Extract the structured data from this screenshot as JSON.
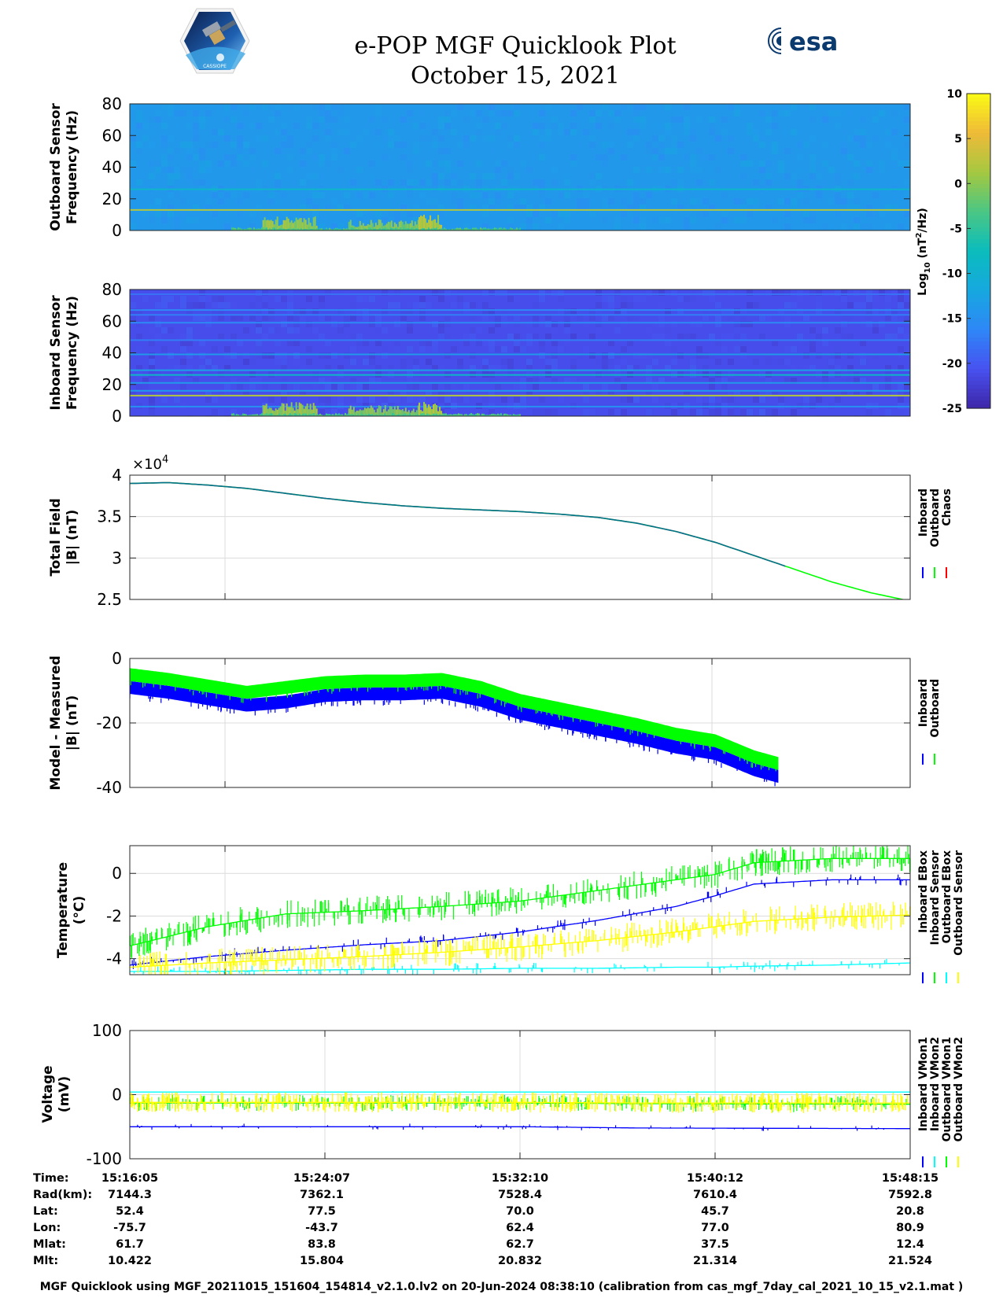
{
  "header": {
    "title": "e-POP MGF Quicklook Plot",
    "date": "October 15, 2021",
    "left_logo_text": "CASSIOPE",
    "right_logo_text": "esa"
  },
  "chart_data": [
    {
      "id": "outboard-spectrogram",
      "type": "heatmap",
      "ylabel": [
        "Outboard Sensor",
        "Frequency (Hz)"
      ],
      "ylim": [
        0,
        80
      ],
      "yticks": [
        0,
        20,
        40,
        60,
        80
      ],
      "background_log_psd": -14,
      "horizontal_lines_hz": [
        {
          "f": 26,
          "level": -9
        },
        {
          "f": 13,
          "level": 2
        }
      ],
      "activity_bursts": [
        {
          "t_start": 0.17,
          "t_end": 0.24,
          "max_hz": 9,
          "level": 2
        },
        {
          "t_start": 0.28,
          "t_end": 0.37,
          "max_hz": 7,
          "level": 1
        },
        {
          "t_start": 0.37,
          "t_end": 0.4,
          "max_hz": 10,
          "level": 3
        },
        {
          "t_start": 0.13,
          "t_end": 0.5,
          "max_hz": 2,
          "level": -2
        }
      ]
    },
    {
      "id": "inboard-spectrogram",
      "type": "heatmap",
      "ylabel": [
        "Inboard Sensor",
        "Frequency (Hz)"
      ],
      "ylim": [
        0,
        80
      ],
      "yticks": [
        0,
        20,
        40,
        60,
        80
      ],
      "background_log_psd": -21,
      "horizontal_lines_hz": [
        {
          "f": 77,
          "level": -18
        },
        {
          "f": 67,
          "level": -16
        },
        {
          "f": 64,
          "level": -17
        },
        {
          "f": 59,
          "level": -16
        },
        {
          "f": 48,
          "level": -17
        },
        {
          "f": 39,
          "level": -14
        },
        {
          "f": 29,
          "level": -13
        },
        {
          "f": 26,
          "level": -9
        },
        {
          "f": 21,
          "level": -14
        },
        {
          "f": 16,
          "level": -14
        },
        {
          "f": 13,
          "level": 2
        },
        {
          "f": 6,
          "level": -15
        }
      ],
      "activity_bursts": [
        {
          "t_start": 0.17,
          "t_end": 0.24,
          "max_hz": 9,
          "level": 2
        },
        {
          "t_start": 0.28,
          "t_end": 0.37,
          "max_hz": 7,
          "level": 1
        },
        {
          "t_start": 0.37,
          "t_end": 0.4,
          "max_hz": 10,
          "level": 3
        },
        {
          "t_start": 0.13,
          "t_end": 0.5,
          "max_hz": 2,
          "level": -2
        }
      ]
    },
    {
      "id": "colorbar",
      "type": "heatmap",
      "label": "Log10 (nT2/Hz)",
      "label_parts": {
        "base": "Log",
        "sub": "10",
        "open": " (nT",
        "sup": "2",
        "close": "/Hz)"
      },
      "range": [
        -25,
        10
      ],
      "ticks": [
        10,
        5,
        0,
        -5,
        -10,
        -15,
        -20,
        -25
      ],
      "colormap": [
        "#3e26a8",
        "#4751f0",
        "#2e87f7",
        "#17a8e0",
        "#0bbcbc",
        "#4bc784",
        "#a5c840",
        "#efba38",
        "#f9fb15"
      ]
    },
    {
      "id": "total-field",
      "type": "line",
      "ylabel": [
        "Total Field",
        "|B| (nT)"
      ],
      "ylim": [
        25000,
        40000
      ],
      "yticks": [
        25000,
        30000,
        35000,
        40000
      ],
      "ytick_labels": [
        "2.5",
        "3",
        "3.5",
        "4"
      ],
      "exponent_label": "×10",
      "exponent_power": "4",
      "x": [
        0,
        0.05,
        0.1,
        0.15,
        0.2,
        0.25,
        0.3,
        0.35,
        0.4,
        0.45,
        0.5,
        0.55,
        0.6,
        0.65,
        0.7,
        0.75,
        0.8,
        0.85,
        0.9,
        0.95,
        1.0
      ],
      "series": [
        {
          "name": "Inboard",
          "color": "#0000ff",
          "visible_until": 0.84,
          "values": [
            39000,
            39100,
            38800,
            38400,
            37800,
            37200,
            36700,
            36300,
            36000,
            35800,
            35600,
            35300,
            34900,
            34200,
            33200,
            31900,
            30300,
            28700,
            27100,
            25800,
            24800
          ]
        },
        {
          "name": "Outboard",
          "color": "#00ff00",
          "visible_until": 1.0,
          "values": [
            39000,
            39100,
            38800,
            38400,
            37800,
            37200,
            36700,
            36300,
            36000,
            35800,
            35600,
            35300,
            34900,
            34200,
            33200,
            31900,
            30300,
            28700,
            27100,
            25800,
            24800
          ]
        },
        {
          "name": "Chaos",
          "color": "#ff0000",
          "visible_until": 0.84,
          "values": [
            39000,
            39100,
            38800,
            38400,
            37800,
            37200,
            36700,
            36300,
            36000,
            35800,
            35600,
            35300,
            34900,
            34200,
            33200,
            31900,
            30300,
            28700,
            27100,
            25800,
            24800
          ]
        }
      ]
    },
    {
      "id": "model-minus-measured",
      "type": "line",
      "ylabel": [
        "Model - Measured",
        "|B| (nT)"
      ],
      "ylim": [
        -40,
        0
      ],
      "yticks": [
        -40,
        -20,
        0
      ],
      "ytick_labels": [
        "-40",
        "-20",
        "0"
      ],
      "x": [
        0,
        0.05,
        0.1,
        0.15,
        0.2,
        0.25,
        0.3,
        0.35,
        0.4,
        0.45,
        0.5,
        0.55,
        0.6,
        0.65,
        0.7,
        0.75,
        0.8,
        0.83
      ],
      "series": [
        {
          "name": "Inboard",
          "color": "#0000ff",
          "band": 3.5,
          "values": [
            -9,
            -10.5,
            -12.5,
            -14.5,
            -13.5,
            -11.5,
            -11,
            -11,
            -10.5,
            -13,
            -17,
            -19.5,
            -22,
            -24.5,
            -27.5,
            -29.5,
            -34.5,
            -36.5
          ]
        },
        {
          "name": "Outboard",
          "color": "#00ff00",
          "band": 3.5,
          "values": [
            -5,
            -6.5,
            -8.5,
            -10.5,
            -9,
            -7.5,
            -7,
            -7,
            -6.5,
            -9,
            -13,
            -15.5,
            -18,
            -20.5,
            -23.5,
            -25.5,
            -30.5,
            -32.5
          ]
        }
      ]
    },
    {
      "id": "temperature",
      "type": "line",
      "ylabel": [
        "Temperature",
        "(°C)"
      ],
      "ylim": [
        -4.75,
        1.3
      ],
      "yticks": [
        -4,
        -2,
        0
      ],
      "ytick_labels": [
        "-4",
        "-2",
        "0"
      ],
      "x": [
        0,
        0.1,
        0.2,
        0.3,
        0.4,
        0.5,
        0.6,
        0.7,
        0.75,
        0.8,
        0.9,
        1.0
      ],
      "series": [
        {
          "name": "Inboard EBox",
          "color": "#0000ff",
          "values": [
            -4.3,
            -3.9,
            -3.6,
            -3.35,
            -3.15,
            -2.75,
            -2.2,
            -1.55,
            -1.05,
            -0.5,
            -0.3,
            -0.3
          ]
        },
        {
          "name": "Inboard Sensor",
          "color": "#00ff00",
          "values": [
            -3.4,
            -2.5,
            -1.9,
            -1.75,
            -1.55,
            -1.3,
            -0.8,
            -0.3,
            -0.05,
            0.5,
            0.7,
            0.7
          ]
        },
        {
          "name": "Outboard EBox",
          "color": "#00ffff",
          "values": [
            -4.6,
            -4.6,
            -4.55,
            -4.5,
            -4.5,
            -4.45,
            -4.45,
            -4.4,
            -4.4,
            -4.35,
            -4.3,
            -4.2
          ]
        },
        {
          "name": "Outboard Sensor",
          "color": "#ffff00",
          "values": [
            -4.4,
            -4.2,
            -4.05,
            -3.9,
            -3.7,
            -3.45,
            -3.15,
            -2.75,
            -2.5,
            -2.25,
            -2.05,
            -1.95
          ]
        }
      ]
    },
    {
      "id": "voltage",
      "type": "line",
      "ylabel": [
        "Voltage",
        "(mV)"
      ],
      "ylim": [
        -100,
        100
      ],
      "yticks": [
        -100,
        0,
        100
      ],
      "ytick_labels": [
        "-100",
        "0",
        "100"
      ],
      "x": [
        0,
        0.5,
        0.65,
        1.0
      ],
      "series": [
        {
          "name": "Inboard VMon1",
          "color": "#0000ff",
          "values": [
            -50,
            -50,
            -52,
            -53
          ]
        },
        {
          "name": "Inboard VMon2",
          "color": "#00ffff",
          "values": [
            4,
            4,
            4,
            4
          ]
        },
        {
          "name": "Outboard VMon1",
          "color": "#00ff00",
          "values": [
            -13,
            -13,
            -14,
            -15
          ]
        },
        {
          "name": "Outboard VMon2",
          "color": "#ffff00",
          "values": [
            -12,
            -12,
            -13,
            -13
          ]
        }
      ]
    }
  ],
  "ephemeris": {
    "labels": [
      "Time:",
      "Rad(km):",
      "Lat:",
      "Lon:",
      "Mlat:",
      "Mlt:"
    ],
    "columns": [
      [
        "15:16:05",
        "7144.3",
        "52.4",
        "-75.7",
        "61.7",
        "10.422"
      ],
      [
        "15:24:07",
        "7362.1",
        "77.5",
        "-43.7",
        "83.8",
        "15.804"
      ],
      [
        "15:32:10",
        "7528.4",
        "70.0",
        "62.4",
        "62.7",
        "20.832"
      ],
      [
        "15:40:12",
        "7610.4",
        "45.7",
        "77.0",
        "37.5",
        "21.314"
      ],
      [
        "15:48:15",
        "7592.8",
        "20.8",
        "80.9",
        "12.4",
        "21.524"
      ]
    ]
  },
  "footer": "MGF Quicklook using MGF_20211015_151604_154814_v2.1.0.lv2 on 20-Jun-2024 08:38:10 (calibration from cas_mgf_7day_cal_2021_10_15_v2.1.mat )"
}
